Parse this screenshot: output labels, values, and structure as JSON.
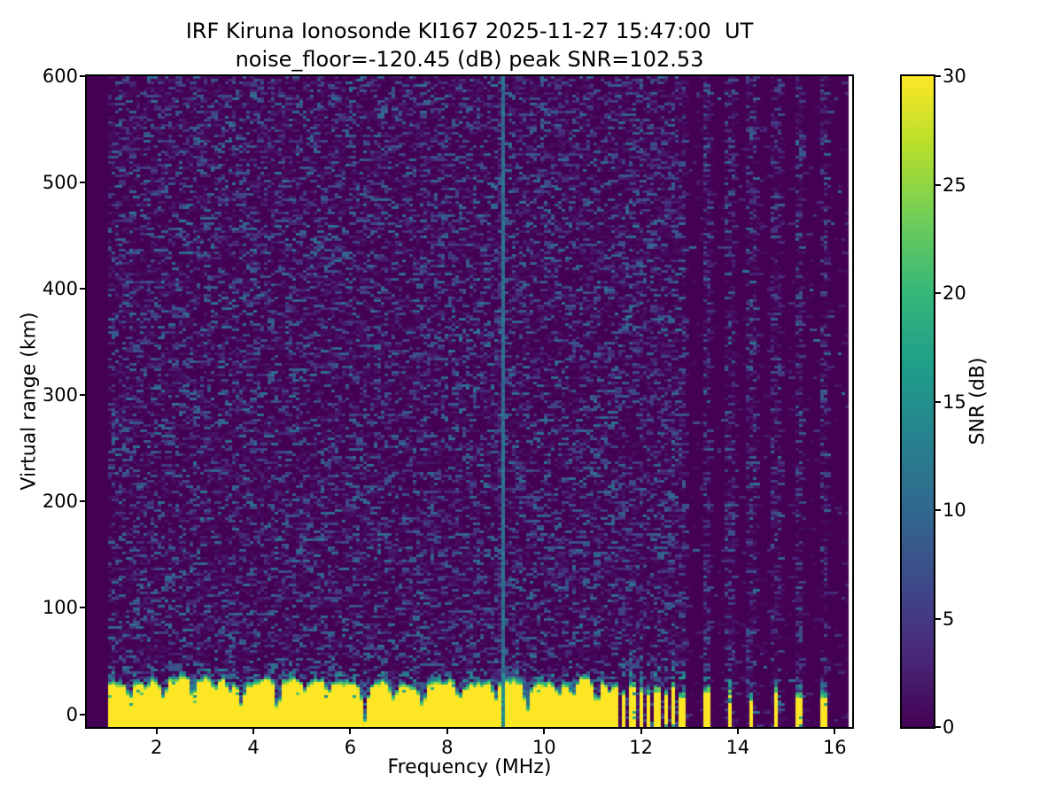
{
  "chart_data": {
    "type": "heatmap",
    "title_line1": "IRF Kiruna Ionosonde KI167 2025-11-27 15:47:00  UT",
    "title_line2": "noise_floor=-120.45 (dB) peak SNR=102.53",
    "station": "IRF Kiruna Ionosonde KI167",
    "timestamp_ut": "2025-11-27 15:47:00",
    "noise_floor_db": -120.45,
    "peak_snr_db": 102.53,
    "xlabel": "Frequency (MHz)",
    "ylabel": "Virtual range (km)",
    "colorbar_label": "SNR (dB)",
    "xlim": [
      0.56,
      16.36
    ],
    "ylim": [
      -12,
      600
    ],
    "clim": [
      0,
      30
    ],
    "x_ticks": [
      2,
      4,
      6,
      8,
      10,
      12,
      14,
      16
    ],
    "y_ticks": [
      0,
      100,
      200,
      300,
      400,
      500,
      600
    ],
    "colorbar_ticks": [
      0,
      5,
      10,
      15,
      20,
      25,
      30
    ],
    "colormap": "viridis",
    "colormap_stops": [
      "#440154",
      "#482878",
      "#3e4a89",
      "#31688e",
      "#26828e",
      "#1f9e89",
      "#35b779",
      "#6dcd59",
      "#b4de2c",
      "#fde725"
    ],
    "grid": false,
    "legend": "colorbar-right",
    "content": {
      "data_freq_range_mhz": [
        1.0,
        16.28
      ],
      "continuous_sweep_max_mhz": 11.55,
      "background_speckle_max_db": 12,
      "ground_clutter_band": {
        "snr_db": 30,
        "top_km_mean": 29,
        "top_km_min": 22,
        "top_km_max": 35,
        "fringe_km": 14
      },
      "interference_line": {
        "freq_mhz": 9.12,
        "snr_db": 10
      },
      "notch_width_mhz": 0.055,
      "clutter_notches": [
        {
          "f": 1.45,
          "d": 14
        },
        {
          "f": 1.8,
          "d": 10
        },
        {
          "f": 2.15,
          "d": 16
        },
        {
          "f": 2.75,
          "d": 18
        },
        {
          "f": 3.2,
          "d": 12
        },
        {
          "f": 3.5,
          "d": 14
        },
        {
          "f": 3.75,
          "d": 22
        },
        {
          "f": 4.5,
          "d": 26
        },
        {
          "f": 5.05,
          "d": 12
        },
        {
          "f": 5.55,
          "d": 14
        },
        {
          "f": 6.3,
          "d": 34
        },
        {
          "f": 6.9,
          "d": 16
        },
        {
          "f": 7.5,
          "d": 18
        },
        {
          "f": 8.25,
          "d": 14
        },
        {
          "f": 9.0,
          "d": 18
        },
        {
          "f": 9.65,
          "d": 24
        },
        {
          "f": 10.3,
          "d": 12
        },
        {
          "f": 10.6,
          "d": 14
        },
        {
          "f": 11.1,
          "d": 22
        },
        {
          "f": 11.35,
          "d": 12
        }
      ],
      "discrete_freqs_dense_mhz": [
        11.65,
        11.82,
        11.99,
        12.16,
        12.33,
        12.5,
        12.67,
        12.84
      ],
      "discrete_freqs_sparse_mhz": [
        13.35,
        13.82,
        14.29,
        14.78,
        15.27,
        15.76
      ]
    }
  }
}
